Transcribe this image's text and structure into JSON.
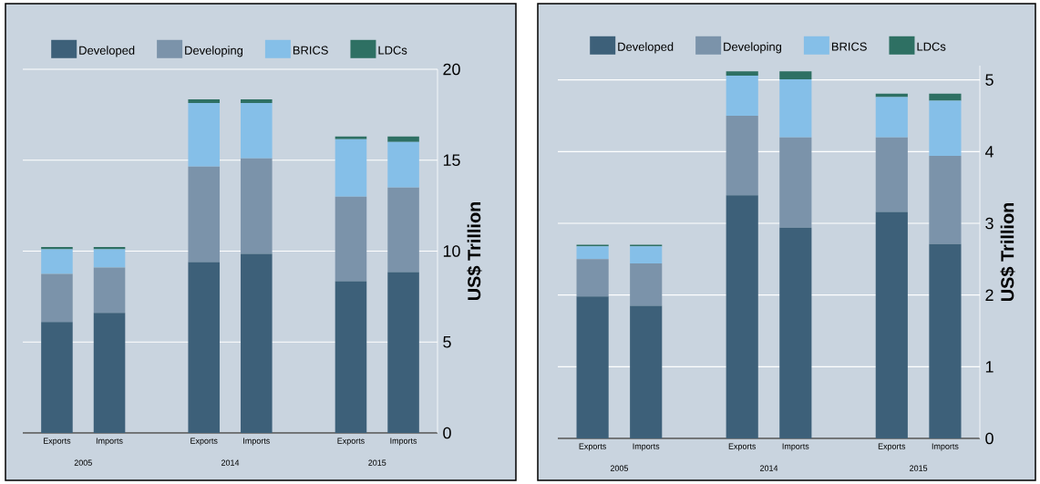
{
  "chart_data": [
    {
      "type": "bar",
      "stacked": true,
      "ylabel": "US$ Trillion",
      "categories": [
        "Exports",
        "Imports",
        "Exports",
        "Imports",
        "Exports",
        "Imports"
      ],
      "annotations": [
        "2005",
        "2014",
        "2015"
      ],
      "ylim": [
        0,
        20
      ],
      "yticks": [
        0,
        5,
        10,
        15,
        20
      ],
      "grid": "y",
      "legend": "top",
      "series": [
        {
          "name": "Developed",
          "color": "#3d6079",
          "values": [
            6.1,
            6.6,
            9.4,
            9.85,
            8.35,
            8.85
          ]
        },
        {
          "name": "Developing",
          "color": "#7b93aa",
          "values": [
            2.65,
            2.5,
            5.25,
            5.25,
            4.65,
            4.65
          ]
        },
        {
          "name": "BRICS",
          "color": "#85bfe8",
          "values": [
            1.35,
            1.0,
            3.5,
            3.05,
            3.15,
            2.5
          ]
        },
        {
          "name": "LDCs",
          "color": "#2e7063",
          "values": [
            0.13,
            0.13,
            0.2,
            0.2,
            0.15,
            0.3
          ]
        }
      ]
    },
    {
      "type": "bar",
      "stacked": true,
      "ylabel": "US$ Trillion",
      "categories": [
        "Exports",
        "Imports",
        "Exports",
        "Imports",
        "Exports",
        "Imports"
      ],
      "annotations": [
        "2005",
        "2014",
        "2015"
      ],
      "ylim": [
        0,
        5.2
      ],
      "yticks": [
        0,
        1,
        2,
        3,
        4,
        5
      ],
      "grid": "y",
      "legend": "top",
      "series": [
        {
          "name": "Developed",
          "color": "#3d6079",
          "values": [
            1.98,
            1.85,
            3.39,
            2.94,
            3.16,
            2.71
          ]
        },
        {
          "name": "Developing",
          "color": "#7b93aa",
          "values": [
            0.52,
            0.59,
            1.11,
            1.26,
            1.04,
            1.23
          ]
        },
        {
          "name": "BRICS",
          "color": "#85bfe8",
          "values": [
            0.18,
            0.24,
            0.56,
            0.81,
            0.56,
            0.77
          ]
        },
        {
          "name": "LDCs",
          "color": "#2e7063",
          "values": [
            0.02,
            0.02,
            0.06,
            0.11,
            0.05,
            0.1
          ]
        }
      ]
    }
  ]
}
